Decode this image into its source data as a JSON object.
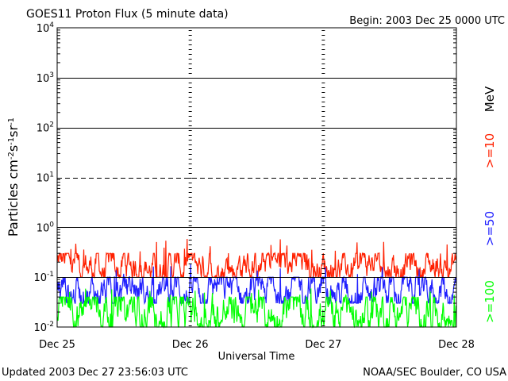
{
  "header": {
    "title": "GOES11 Proton Flux (5 minute data)",
    "begin": "Begin: 2003 Dec 25 0000 UTC"
  },
  "footer": {
    "updated": "Updated 2003 Dec 27 23:56:03 UTC",
    "source": "NOAA/SEC Boulder, CO USA"
  },
  "chart_data": {
    "type": "line",
    "title": "GOES11 Proton Flux (5 minute data)",
    "xlabel": "Universal Time",
    "ylabel": "Particles cm-2s-1sr-1",
    "y_scale": "log",
    "ylim": [
      0.01,
      10000
    ],
    "xlim": [
      "2003-12-25",
      "2003-12-28"
    ],
    "x_ticks": [
      "Dec 25",
      "Dec 26",
      "Dec 27",
      "Dec 28"
    ],
    "y_ticks": [
      {
        "base": "10",
        "exp": "-2"
      },
      {
        "base": "10",
        "exp": "-1"
      },
      {
        "base": "10",
        "exp": "0"
      },
      {
        "base": "10",
        "exp": "1"
      },
      {
        "base": "10",
        "exp": "2"
      },
      {
        "base": "10",
        "exp": "3"
      },
      {
        "base": "10",
        "exp": "4"
      }
    ],
    "legend_unit": "MeV",
    "legend_position": "right",
    "grid": "horizontal at each decade; dashed line at 10^1",
    "series": [
      {
        "name": ">=10",
        "color": "#ff2000",
        "typical_range": [
          0.1,
          0.3
        ],
        "peak": 0.6,
        "x": [
          "2003-12-25",
          "2003-12-28"
        ],
        "y": [
          0.15,
          0.15
        ]
      },
      {
        "name": ">=50",
        "color": "#2020ff",
        "typical_range": [
          0.03,
          0.1
        ],
        "peak": 0.2,
        "x": [
          "2003-12-25",
          "2003-12-28"
        ],
        "y": [
          0.06,
          0.06
        ]
      },
      {
        "name": ">=100",
        "color": "#00ff00",
        "typical_range": [
          0.01,
          0.04
        ],
        "peak": 0.06,
        "x": [
          "2003-12-25",
          "2003-12-28"
        ],
        "y": [
          0.02,
          0.02
        ]
      }
    ]
  }
}
